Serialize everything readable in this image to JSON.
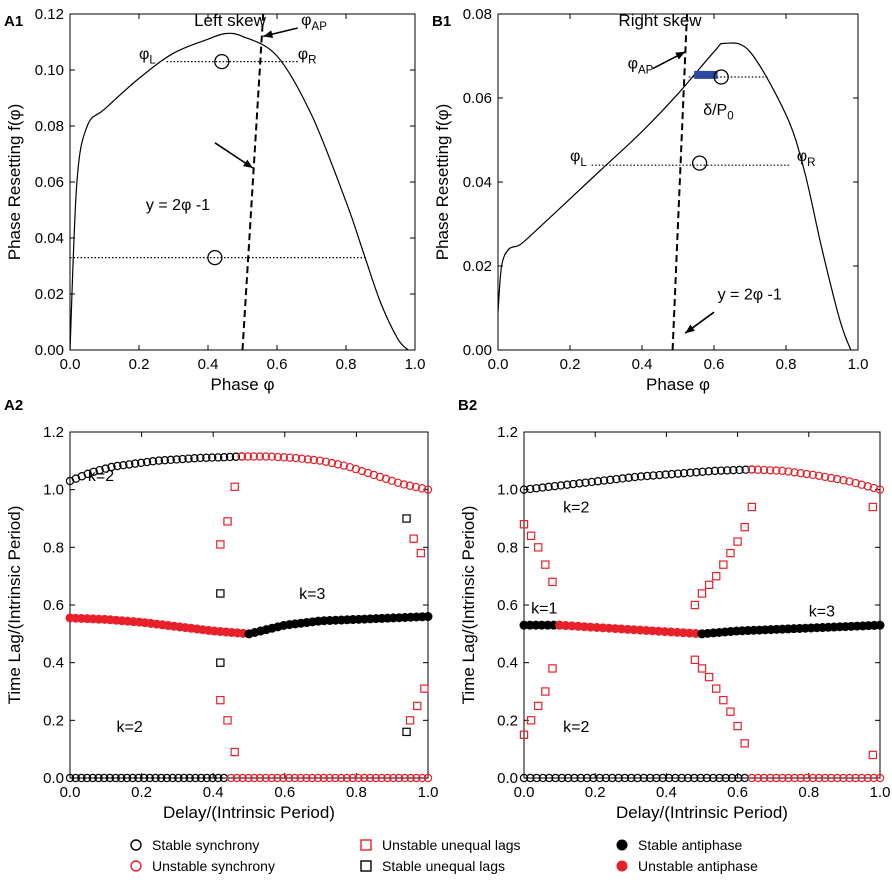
{
  "colors": {
    "black": "#000000",
    "red": "#e8202a",
    "blue": "#2b4aa0"
  },
  "chart_data": [
    {
      "id": "A1",
      "type": "line",
      "panel_label": "A1",
      "title": "Left skew",
      "xlabel": "Phase φ",
      "ylabel": "Phase Resetting f(φ)",
      "xlim": [
        0.0,
        1.0
      ],
      "ylim": [
        0.0,
        0.12
      ],
      "xticks": [
        "0.0",
        "0.2",
        "0.4",
        "0.6",
        "0.8",
        "1.0"
      ],
      "yticks": [
        "0.00",
        "0.02",
        "0.04",
        "0.06",
        "0.08",
        "0.10",
        "0.12"
      ],
      "xtick_values": [
        0.0,
        0.2,
        0.4,
        0.6,
        0.8,
        1.0
      ],
      "ytick_values": [
        0.0,
        0.02,
        0.04,
        0.06,
        0.08,
        0.1,
        0.12
      ],
      "prc_curve": [
        [
          0.0,
          0.0
        ],
        [
          0.02,
          0.06
        ],
        [
          0.05,
          0.08
        ],
        [
          0.1,
          0.086
        ],
        [
          0.2,
          0.097
        ],
        [
          0.3,
          0.106
        ],
        [
          0.4,
          0.111
        ],
        [
          0.45,
          0.113
        ],
        [
          0.5,
          0.112
        ],
        [
          0.6,
          0.105
        ],
        [
          0.7,
          0.084
        ],
        [
          0.8,
          0.053
        ],
        [
          0.85,
          0.035
        ],
        [
          0.9,
          0.017
        ],
        [
          0.95,
          0.004
        ],
        [
          0.98,
          0.0
        ]
      ],
      "line_y_2phi_minus_1": [
        [
          0.5,
          0.0
        ],
        [
          0.56,
          0.12
        ]
      ],
      "hlines": [
        {
          "y": 0.103,
          "x0": 0.28,
          "x1": 0.66
        },
        {
          "y": 0.033,
          "x0": 0.0,
          "x1": 0.86
        }
      ],
      "circles": [
        [
          0.44,
          0.103
        ],
        [
          0.42,
          0.033
        ]
      ],
      "annotations": [
        {
          "text": "φL",
          "x": 0.2,
          "y": 0.104
        },
        {
          "text": "φR",
          "x": 0.66,
          "y": 0.104
        },
        {
          "text": "φAP",
          "x": 0.67,
          "y": 0.116
        },
        {
          "text": "y = 2φ -1",
          "x": 0.22,
          "y": 0.05
        }
      ],
      "arrows": [
        {
          "from": [
            0.66,
            0.115
          ],
          "to": [
            0.56,
            0.112
          ]
        },
        {
          "from": [
            0.42,
            0.074
          ],
          "to": [
            0.53,
            0.065
          ]
        }
      ]
    },
    {
      "id": "B1",
      "type": "line",
      "panel_label": "B1",
      "title": "Right skew",
      "xlabel": "Phase φ",
      "ylabel": "Phase Resetting f(φ)",
      "xlim": [
        0.0,
        1.0
      ],
      "ylim": [
        0.0,
        0.08
      ],
      "xticks": [
        "0.0",
        "0.2",
        "0.4",
        "0.6",
        "0.8",
        "1.0"
      ],
      "yticks": [
        "0.00",
        "0.02",
        "0.04",
        "0.06",
        "0.08"
      ],
      "xtick_values": [
        0.0,
        0.2,
        0.4,
        0.6,
        0.8,
        1.0
      ],
      "ytick_values": [
        0.0,
        0.02,
        0.04,
        0.06,
        0.08
      ],
      "prc_curve": [
        [
          0.0,
          0.009
        ],
        [
          0.01,
          0.02
        ],
        [
          0.03,
          0.024
        ],
        [
          0.06,
          0.025
        ],
        [
          0.1,
          0.028
        ],
        [
          0.2,
          0.036
        ],
        [
          0.3,
          0.044
        ],
        [
          0.4,
          0.052
        ],
        [
          0.5,
          0.061
        ],
        [
          0.6,
          0.071
        ],
        [
          0.63,
          0.073
        ],
        [
          0.7,
          0.071
        ],
        [
          0.8,
          0.056
        ],
        [
          0.85,
          0.043
        ],
        [
          0.9,
          0.024
        ],
        [
          0.95,
          0.007
        ],
        [
          0.98,
          0.0
        ]
      ],
      "line_y_2phi_minus_1": [
        [
          0.485,
          0.0
        ],
        [
          0.525,
          0.08
        ]
      ],
      "hlines": [
        {
          "y": 0.065,
          "x0": 0.53,
          "x1": 0.75
        },
        {
          "y": 0.044,
          "x0": 0.26,
          "x1": 0.81
        }
      ],
      "circles": [
        [
          0.62,
          0.065
        ],
        [
          0.56,
          0.0445
        ]
      ],
      "highlight_bar": {
        "x0": 0.545,
        "x1": 0.61,
        "y": 0.0655
      },
      "annotations": [
        {
          "text": "φL",
          "x": 0.2,
          "y": 0.045
        },
        {
          "text": "φR",
          "x": 0.83,
          "y": 0.045
        },
        {
          "text": "φAP",
          "x": 0.36,
          "y": 0.067
        },
        {
          "text": "δ/P0",
          "x": 0.57,
          "y": 0.056
        },
        {
          "text": "y = 2φ -1",
          "x": 0.61,
          "y": 0.012
        }
      ],
      "arrows": [
        {
          "from": [
            0.43,
            0.067
          ],
          "to": [
            0.52,
            0.071
          ]
        },
        {
          "from": [
            0.6,
            0.009
          ],
          "to": [
            0.52,
            0.004
          ]
        }
      ]
    },
    {
      "id": "A2",
      "type": "scatter",
      "panel_label": "A2",
      "xlabel": "Delay/(Intrinsic Period)",
      "ylabel": "Time Lag/(Intrinsic Period)",
      "xlim": [
        0.0,
        1.0
      ],
      "ylim": [
        0.0,
        1.2
      ],
      "xticks": [
        "0.0",
        "0.2",
        "0.4",
        "0.6",
        "0.8",
        "1.0"
      ],
      "yticks": [
        "0.0",
        "0.2",
        "0.4",
        "0.6",
        "0.8",
        "1.0",
        "1.2"
      ],
      "xtick_values": [
        0.0,
        0.2,
        0.4,
        0.6,
        0.8,
        1.0
      ],
      "ytick_values": [
        0.0,
        0.2,
        0.4,
        0.6,
        0.8,
        1.0,
        1.2
      ],
      "annotations": [
        {
          "text": "k=2",
          "x": 0.05,
          "y": 1.03
        },
        {
          "text": "k=3",
          "x": 0.64,
          "y": 0.62
        },
        {
          "text": "k=2",
          "x": 0.13,
          "y": 0.16
        }
      ],
      "series": [
        {
          "name": "Stable synchrony",
          "marker": "open-circle",
          "color": "#000000",
          "x0": 0.0,
          "x1": 0.48,
          "n": 30,
          "ys": [
            1.03,
            1.06,
            1.08,
            1.09,
            1.1,
            1.105,
            1.11,
            1.112,
            1.115
          ]
        },
        {
          "name": "Unstable synchrony",
          "marker": "open-circle",
          "color": "#e8202a",
          "x0": 0.48,
          "x1": 1.0,
          "n": 32,
          "ys": [
            1.115,
            1.115,
            1.11,
            1.1,
            1.08,
            1.05,
            1.02,
            1.0
          ]
        },
        {
          "name": "Stable synchrony",
          "marker": "open-circle",
          "color": "#000000",
          "x0": 0.0,
          "x1": 0.43,
          "n": 28,
          "ys": [
            0.0,
            0.0
          ]
        },
        {
          "name": "Unstable synchrony",
          "marker": "open-circle",
          "color": "#e8202a",
          "x0": 0.45,
          "x1": 1.0,
          "n": 35,
          "ys": [
            0.0,
            0.0
          ]
        },
        {
          "name": "Unstable antiphase",
          "marker": "filled-circle",
          "color": "#e8202a",
          "x0": 0.0,
          "x1": 0.5,
          "n": 32,
          "ys": [
            0.555,
            0.55,
            0.54,
            0.525,
            0.51,
            0.5
          ]
        },
        {
          "name": "Stable antiphase",
          "marker": "filled-circle",
          "color": "#000000",
          "x0": 0.5,
          "x1": 1.0,
          "n": 32,
          "ys": [
            0.5,
            0.53,
            0.545,
            0.55,
            0.555,
            0.56
          ]
        }
      ],
      "points": [
        {
          "name": "Unstable unequal lags",
          "marker": "open-square",
          "color": "#e8202a",
          "xy": [
            [
              0.42,
              0.81
            ],
            [
              0.44,
              0.89
            ],
            [
              0.46,
              1.01
            ],
            [
              0.42,
              0.27
            ],
            [
              0.44,
              0.2
            ],
            [
              0.46,
              0.09
            ],
            [
              0.96,
              0.83
            ],
            [
              0.98,
              0.78
            ],
            [
              0.95,
              0.2
            ],
            [
              0.97,
              0.25
            ],
            [
              0.99,
              0.31
            ]
          ]
        },
        {
          "name": "Stable unequal lags",
          "marker": "open-square",
          "color": "#000000",
          "xy": [
            [
              0.42,
              0.64
            ],
            [
              0.42,
              0.4
            ],
            [
              0.94,
              0.9
            ],
            [
              0.94,
              0.16
            ]
          ]
        }
      ]
    },
    {
      "id": "B2",
      "type": "scatter",
      "panel_label": "B2",
      "xlabel": "Delay/(Intrinsic Period)",
      "ylabel": "Time Lag/(Intrinsic Period)",
      "xlim": [
        0.0,
        1.0
      ],
      "ylim": [
        0.0,
        1.2
      ],
      "xticks": [
        "0.0",
        "0.2",
        "0.4",
        "0.6",
        "0.8",
        "1.0"
      ],
      "yticks": [
        "0.0",
        "0.2",
        "0.4",
        "0.6",
        "0.8",
        "1.0",
        "1.2"
      ],
      "xtick_values": [
        0.0,
        0.2,
        0.4,
        0.6,
        0.8,
        1.0
      ],
      "ytick_values": [
        0.0,
        0.2,
        0.4,
        0.6,
        0.8,
        1.0,
        1.2
      ],
      "annotations": [
        {
          "text": "k=2",
          "x": 0.11,
          "y": 0.92
        },
        {
          "text": "k=1",
          "x": 0.02,
          "y": 0.57
        },
        {
          "text": "k=3",
          "x": 0.8,
          "y": 0.56
        },
        {
          "text": "k=2",
          "x": 0.11,
          "y": 0.16
        }
      ],
      "series": [
        {
          "name": "Stable synchrony",
          "marker": "open-circle",
          "color": "#000000",
          "x0": 0.0,
          "x1": 0.64,
          "n": 38,
          "ys": [
            1.0,
            1.015,
            1.03,
            1.045,
            1.055,
            1.065,
            1.07
          ]
        },
        {
          "name": "Unstable synchrony",
          "marker": "open-circle",
          "color": "#e8202a",
          "x0": 0.64,
          "x1": 1.0,
          "n": 22,
          "ys": [
            1.07,
            1.065,
            1.05,
            1.03,
            1.0
          ]
        },
        {
          "name": "Stable synchrony",
          "marker": "open-circle",
          "color": "#000000",
          "x0": 0.0,
          "x1": 0.62,
          "n": 36,
          "ys": [
            0.0,
            0.0
          ]
        },
        {
          "name": "Unstable synchrony",
          "marker": "open-circle",
          "color": "#e8202a",
          "x0": 0.64,
          "x1": 1.0,
          "n": 22,
          "ys": [
            0.0,
            0.0
          ]
        },
        {
          "name": "Stable antiphase",
          "marker": "filled-circle",
          "color": "#000000",
          "x0": 0.0,
          "x1": 0.1,
          "n": 7,
          "ys": [
            0.53,
            0.53
          ]
        },
        {
          "name": "Unstable antiphase",
          "marker": "filled-circle",
          "color": "#e8202a",
          "x0": 0.1,
          "x1": 0.5,
          "n": 24,
          "ys": [
            0.53,
            0.52,
            0.51,
            0.5
          ]
        },
        {
          "name": "Stable antiphase",
          "marker": "filled-circle",
          "color": "#000000",
          "x0": 0.5,
          "x1": 1.0,
          "n": 32,
          "ys": [
            0.5,
            0.51,
            0.515,
            0.52,
            0.525,
            0.53
          ]
        }
      ],
      "points": [
        {
          "name": "Unstable unequal lags",
          "marker": "open-square",
          "color": "#e8202a",
          "xy": [
            [
              0.0,
              0.88
            ],
            [
              0.02,
              0.84
            ],
            [
              0.04,
              0.8
            ],
            [
              0.06,
              0.74
            ],
            [
              0.08,
              0.68
            ],
            [
              0.0,
              0.15
            ],
            [
              0.02,
              0.2
            ],
            [
              0.04,
              0.25
            ],
            [
              0.06,
              0.3
            ],
            [
              0.08,
              0.38
            ],
            [
              0.48,
              0.6
            ],
            [
              0.5,
              0.64
            ],
            [
              0.52,
              0.67
            ],
            [
              0.54,
              0.7
            ],
            [
              0.56,
              0.74
            ],
            [
              0.58,
              0.78
            ],
            [
              0.6,
              0.82
            ],
            [
              0.62,
              0.87
            ],
            [
              0.64,
              0.94
            ],
            [
              0.48,
              0.41
            ],
            [
              0.5,
              0.38
            ],
            [
              0.52,
              0.35
            ],
            [
              0.54,
              0.31
            ],
            [
              0.56,
              0.27
            ],
            [
              0.58,
              0.23
            ],
            [
              0.6,
              0.18
            ],
            [
              0.62,
              0.12
            ],
            [
              0.98,
              0.94
            ],
            [
              0.98,
              0.08
            ]
          ]
        }
      ]
    }
  ],
  "legend": [
    {
      "label": "Stable synchrony",
      "marker": "open-circle",
      "color": "#000000"
    },
    {
      "label": "Unstable synchrony",
      "marker": "open-circle",
      "color": "#e8202a"
    },
    {
      "label": "Unstable unequal lags",
      "marker": "open-square",
      "color": "#e8202a"
    },
    {
      "label": "Stable unequal lags",
      "marker": "open-square",
      "color": "#000000"
    },
    {
      "label": "Stable antiphase",
      "marker": "filled-circle",
      "color": "#000000"
    },
    {
      "label": "Unstable antiphase",
      "marker": "filled-circle",
      "color": "#e8202a"
    }
  ]
}
